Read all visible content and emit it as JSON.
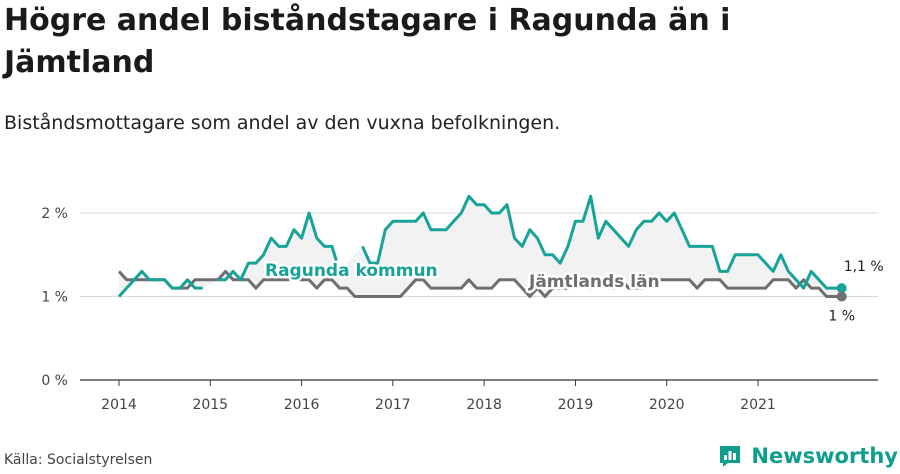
{
  "title": "Högre andel biståndstagare i Ragunda än i Jämtland",
  "subtitle": "Biståndsmottagare som andel av den vuxna befolkningen.",
  "source": "Källa: Socialstyrelsen",
  "brand": "Newsworthy",
  "colors": {
    "ragunda": "#17a398",
    "jamtland": "#6e6e73",
    "band": "#eeeeee",
    "grid": "#d9d9d9"
  },
  "chart_data": {
    "type": "line",
    "ylim": [
      0,
      2.0
    ],
    "xlim": [
      2013.6,
      2022.3
    ],
    "y_ticks": [
      {
        "v": 0,
        "label": "0 %"
      },
      {
        "v": 1,
        "label": "1 %"
      },
      {
        "v": 2,
        "label": "2 %"
      }
    ],
    "x_ticks": [
      "2014",
      "2015",
      "2016",
      "2017",
      "2018",
      "2019",
      "2020",
      "2021"
    ],
    "series": [
      {
        "name": "Ragunda kommun",
        "end_label": "1,1 %",
        "x": [
          2014.0,
          2014.083,
          2014.167,
          2014.25,
          2014.333,
          2014.417,
          2014.5,
          2014.583,
          2014.667,
          2014.75,
          2014.833,
          2014.917,
          2015.0,
          2015.083,
          2015.167,
          2015.25,
          2015.333,
          2015.417,
          2015.5,
          2015.583,
          2015.667,
          2015.75,
          2015.833,
          2015.917,
          2016.0,
          2016.083,
          2016.167,
          2016.25,
          2016.333,
          2016.417,
          2016.5,
          2016.583,
          2016.667,
          2016.75,
          2016.833,
          2016.917,
          2017.0,
          2017.083,
          2017.167,
          2017.25,
          2017.333,
          2017.417,
          2017.5,
          2017.583,
          2017.667,
          2017.75,
          2017.833,
          2017.917,
          2018.0,
          2018.083,
          2018.167,
          2018.25,
          2018.333,
          2018.417,
          2018.5,
          2018.583,
          2018.667,
          2018.75,
          2018.833,
          2018.917,
          2019.0,
          2019.083,
          2019.167,
          2019.25,
          2019.333,
          2019.417,
          2019.5,
          2019.583,
          2019.667,
          2019.75,
          2019.833,
          2019.917,
          2020.0,
          2020.083,
          2020.167,
          2020.25,
          2020.333,
          2020.417,
          2020.5,
          2020.583,
          2020.667,
          2020.75,
          2020.833,
          2020.917,
          2021.0,
          2021.083,
          2021.167,
          2021.25,
          2021.333,
          2021.417,
          2021.5,
          2021.583,
          2021.667,
          2021.75,
          2021.833,
          2021.917
        ],
        "y": [
          1.0,
          1.1,
          1.2,
          1.3,
          1.2,
          1.2,
          1.2,
          1.1,
          1.1,
          1.2,
          1.1,
          1.1,
          null,
          1.2,
          1.2,
          1.3,
          1.2,
          1.4,
          1.4,
          1.5,
          1.7,
          1.6,
          1.6,
          1.8,
          1.7,
          2.0,
          1.7,
          1.6,
          1.6,
          1.3,
          null,
          null,
          1.6,
          1.4,
          1.4,
          1.8,
          1.9,
          1.9,
          1.9,
          1.9,
          2.0,
          1.8,
          1.8,
          1.8,
          1.9,
          2.0,
          2.2,
          2.1,
          2.1,
          2.0,
          2.0,
          2.1,
          1.7,
          1.6,
          1.8,
          1.7,
          1.5,
          1.5,
          1.4,
          1.6,
          1.9,
          1.9,
          2.2,
          1.7,
          1.9,
          1.8,
          1.7,
          1.6,
          1.8,
          1.9,
          1.9,
          2.0,
          1.9,
          2.0,
          1.8,
          1.6,
          1.6,
          1.6,
          1.6,
          1.3,
          1.3,
          1.5,
          1.5,
          1.5,
          1.5,
          1.4,
          1.3,
          1.5,
          1.3,
          1.2,
          1.1,
          1.3,
          1.2,
          1.1,
          1.1,
          1.1
        ]
      },
      {
        "name": "Jämtlands län",
        "end_label": "1 %",
        "x": [
          2014.0,
          2014.083,
          2014.167,
          2014.25,
          2014.333,
          2014.417,
          2014.5,
          2014.583,
          2014.667,
          2014.75,
          2014.833,
          2014.917,
          2015.0,
          2015.083,
          2015.167,
          2015.25,
          2015.333,
          2015.417,
          2015.5,
          2015.583,
          2015.667,
          2015.75,
          2015.833,
          2015.917,
          2016.0,
          2016.083,
          2016.167,
          2016.25,
          2016.333,
          2016.417,
          2016.5,
          2016.583,
          2016.667,
          2016.75,
          2016.833,
          2016.917,
          2017.0,
          2017.083,
          2017.167,
          2017.25,
          2017.333,
          2017.417,
          2017.5,
          2017.583,
          2017.667,
          2017.75,
          2017.833,
          2017.917,
          2018.0,
          2018.083,
          2018.167,
          2018.25,
          2018.333,
          2018.417,
          2018.5,
          2018.583,
          2018.667,
          2018.75,
          2018.833,
          2018.917,
          2019.0,
          2019.083,
          2019.167,
          2019.25,
          2019.333,
          2019.417,
          2019.5,
          2019.583,
          2019.667,
          2019.75,
          2019.833,
          2019.917,
          2020.0,
          2020.083,
          2020.167,
          2020.25,
          2020.333,
          2020.417,
          2020.5,
          2020.583,
          2020.667,
          2020.75,
          2020.833,
          2020.917,
          2021.0,
          2021.083,
          2021.167,
          2021.25,
          2021.333,
          2021.417,
          2021.5,
          2021.583,
          2021.667,
          2021.75,
          2021.833,
          2021.917
        ],
        "y": [
          1.3,
          1.2,
          1.2,
          1.2,
          1.2,
          1.2,
          1.2,
          1.1,
          1.1,
          1.1,
          1.2,
          1.2,
          1.2,
          1.2,
          1.3,
          1.2,
          1.2,
          1.2,
          1.1,
          1.2,
          1.2,
          1.2,
          1.2,
          1.2,
          1.2,
          1.2,
          1.1,
          1.2,
          1.2,
          1.1,
          1.1,
          1.0,
          1.0,
          1.0,
          1.0,
          1.0,
          1.0,
          1.0,
          1.1,
          1.2,
          1.2,
          1.1,
          1.1,
          1.1,
          1.1,
          1.1,
          1.2,
          1.1,
          1.1,
          1.1,
          1.2,
          1.2,
          1.2,
          1.1,
          1.0,
          1.1,
          1.0,
          1.1,
          1.1,
          1.1,
          1.2,
          1.2,
          1.1,
          1.2,
          1.2,
          1.1,
          1.2,
          1.1,
          1.1,
          1.1,
          1.2,
          1.2,
          1.2,
          1.2,
          1.2,
          1.2,
          1.1,
          1.2,
          1.2,
          1.2,
          1.1,
          1.1,
          1.1,
          1.1,
          1.1,
          1.1,
          1.2,
          1.2,
          1.2,
          1.1,
          1.2,
          1.1,
          1.1,
          1.0,
          1.0,
          1.0
        ]
      }
    ]
  }
}
